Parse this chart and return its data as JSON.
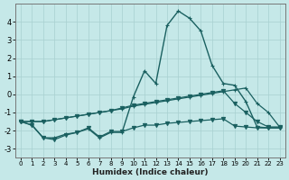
{
  "xlabel": "Humidex (Indice chaleur)",
  "xlim": [
    -0.5,
    23.5
  ],
  "ylim": [
    -3.5,
    5.0
  ],
  "yticks": [
    -3,
    -2,
    -1,
    0,
    1,
    2,
    3,
    4
  ],
  "xticks": [
    0,
    1,
    2,
    3,
    4,
    5,
    6,
    7,
    8,
    9,
    10,
    11,
    12,
    13,
    14,
    15,
    16,
    17,
    18,
    19,
    20,
    21,
    22,
    23
  ],
  "bg_color": "#c5e8e8",
  "grid_color": "#a8d0d0",
  "line_color": "#1a6060",
  "series": [
    {
      "x": [
        0,
        1,
        2,
        3,
        4,
        5,
        6,
        7,
        8,
        9,
        10,
        11,
        12,
        13,
        14,
        15,
        16,
        17,
        18,
        19,
        20,
        21,
        22,
        23
      ],
      "y": [
        -1.5,
        -1.7,
        -2.4,
        -2.4,
        -2.2,
        -2.1,
        -1.9,
        -2.4,
        -2.1,
        -2.1,
        -0.15,
        1.3,
        0.6,
        3.8,
        4.6,
        4.2,
        3.5,
        1.6,
        0.6,
        0.5,
        -0.4,
        -1.8,
        -1.85,
        -1.85
      ],
      "marker": "+",
      "ms": 3.5,
      "lw": 1.0
    },
    {
      "x": [
        0,
        1,
        2,
        3,
        4,
        5,
        6,
        7,
        8,
        9,
        10,
        11,
        12,
        13,
        14,
        15,
        16,
        17,
        18,
        19,
        20,
        21,
        22,
        23
      ],
      "y": [
        -1.5,
        -1.5,
        -1.5,
        -1.4,
        -1.3,
        -1.2,
        -1.1,
        -1.0,
        -0.9,
        -0.8,
        -0.65,
        -0.55,
        -0.45,
        -0.35,
        -0.25,
        -0.15,
        -0.05,
        0.05,
        0.15,
        0.25,
        0.35,
        -0.5,
        -1.0,
        -1.8
      ],
      "marker": "+",
      "ms": 2.5,
      "lw": 0.9
    },
    {
      "x": [
        0,
        1,
        2,
        3,
        4,
        5,
        6,
        7,
        8,
        9,
        10,
        11,
        12,
        13,
        14,
        15,
        16,
        17,
        18,
        19,
        20,
        21,
        22,
        23
      ],
      "y": [
        -1.5,
        -1.5,
        -1.5,
        -1.4,
        -1.3,
        -1.2,
        -1.1,
        -1.0,
        -0.9,
        -0.75,
        -0.6,
        -0.5,
        -0.4,
        -0.3,
        -0.2,
        -0.1,
        0.0,
        0.1,
        0.2,
        -0.5,
        -1.0,
        -1.5,
        -1.8,
        -1.8
      ],
      "marker": "v",
      "ms": 3,
      "lw": 0.9
    },
    {
      "x": [
        0,
        1,
        2,
        3,
        4,
        5,
        6,
        7,
        8,
        9,
        10,
        11,
        12,
        13,
        14,
        15,
        16,
        17,
        18,
        19,
        20,
        21,
        22,
        23
      ],
      "y": [
        -1.5,
        -1.7,
        -2.4,
        -2.5,
        -2.25,
        -2.1,
        -1.85,
        -2.35,
        -2.05,
        -2.05,
        -1.85,
        -1.7,
        -1.7,
        -1.6,
        -1.55,
        -1.5,
        -1.45,
        -1.4,
        -1.35,
        -1.75,
        -1.8,
        -1.85,
        -1.85,
        -1.85
      ],
      "marker": "v",
      "ms": 3,
      "lw": 0.9
    }
  ]
}
